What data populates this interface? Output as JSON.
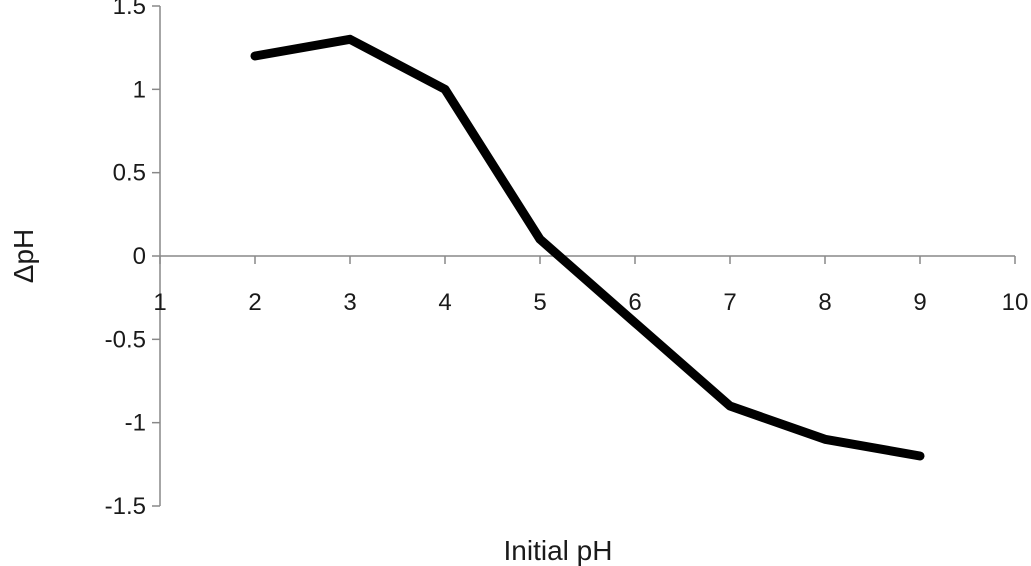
{
  "chart_data": {
    "type": "line",
    "title": "",
    "xlabel": "Initial pH",
    "ylabel": "ΔpH",
    "xlim": [
      1,
      10
    ],
    "ylim": [
      -1.5,
      1.5
    ],
    "x_ticks": [
      1,
      2,
      3,
      4,
      5,
      6,
      7,
      8,
      9,
      10
    ],
    "y_ticks": [
      1.5,
      1,
      0.5,
      0,
      -0.5,
      -1,
      -1.5
    ],
    "grid": false,
    "legend": "none",
    "series": [
      {
        "color": "#000000",
        "x": [
          2,
          3,
          4,
          5,
          6,
          7,
          8,
          9
        ],
        "y": [
          1.2,
          1.3,
          1.0,
          0.1,
          -0.4,
          -0.9,
          -1.1,
          -1.2
        ]
      }
    ]
  }
}
